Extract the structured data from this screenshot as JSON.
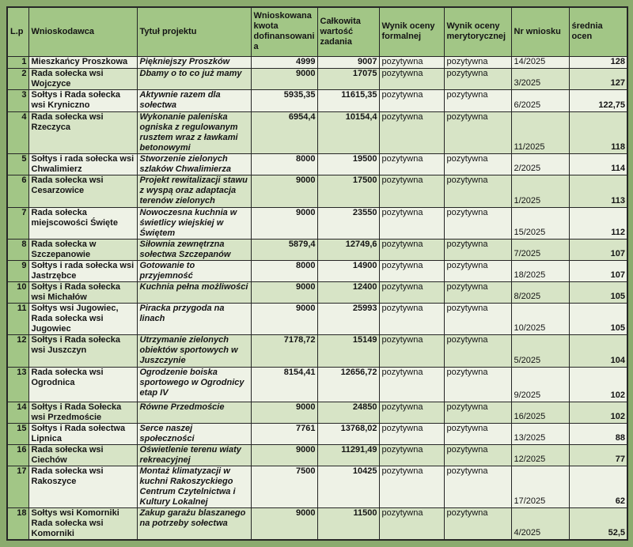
{
  "colors": {
    "page_bg": "#8bab6e",
    "header_bg": "#a2c686",
    "row_light": "#eef2e6",
    "row_green": "#d7e4c6",
    "border": "#262626",
    "text": "#141414"
  },
  "table": {
    "columns": [
      "L.p",
      "Wnioskodawca",
      "Tytuł projektu",
      "Wnioskowana kwota dofinansowania",
      "Całkowita wartość zadania",
      "Wynik oceny formalnej",
      "Wynik oceny merytorycznej",
      "Nr wniosku",
      "średnia ocen"
    ],
    "rows": [
      {
        "lp": "1",
        "wnioskodawca": "Mieszkańcy Proszkowa",
        "tytul": "Piękniejszy Proszków",
        "kwota": "4999",
        "wartosc": "9007",
        "formalna": "pozytywna",
        "merytoryczna": "pozytywna",
        "nr": "14/2025",
        "srednia": "128"
      },
      {
        "lp": "2",
        "wnioskodawca": "Rada sołecka wsi Wojczyce",
        "tytul": "Dbamy o to co już mamy",
        "kwota": "9000",
        "wartosc": "17075",
        "formalna": "pozytywna",
        "merytoryczna": "pozytywna",
        "nr": "3/2025",
        "srednia": "127"
      },
      {
        "lp": "3",
        "wnioskodawca": "Sołtys i Rada sołecka wsi Kryniczno",
        "tytul": "Aktywnie razem dla sołectwa",
        "kwota": "5935,35",
        "wartosc": "11615,35",
        "formalna": "pozytywna",
        "merytoryczna": "pozytywna",
        "nr": "6/2025",
        "srednia": "122,75"
      },
      {
        "lp": "4",
        "wnioskodawca": "Rada sołecka wsi Rzeczyca",
        "tytul": "Wykonanie paleniska ogniska z regulowanym rusztem wraz z ławkami betonowymi",
        "kwota": "6954,4",
        "wartosc": "10154,4",
        "formalna": "pozytywna",
        "merytoryczna": "pozytywna",
        "nr": "11/2025",
        "srednia": "118"
      },
      {
        "lp": "5",
        "wnioskodawca": "Sołtys i rada sołecka wsi Chwalimierz",
        "tytul": "Stworzenie zielonych szlaków Chwalimierza",
        "kwota": "8000",
        "wartosc": "19500",
        "formalna": "pozytywna",
        "merytoryczna": "pozytywna",
        "nr": "2/2025",
        "srednia": "114"
      },
      {
        "lp": "6",
        "wnioskodawca": "Rada sołecka wsi Cesarzowice",
        "tytul": "Projekt rewitalizacji stawu z wyspą oraz adaptacja terenów zielonych",
        "kwota": "9000",
        "wartosc": "17500",
        "formalna": "pozytywna",
        "merytoryczna": "pozytywna",
        "nr": "1/2025",
        "srednia": "113"
      },
      {
        "lp": "7",
        "wnioskodawca": "Rada sołecka miejscowości Święte",
        "tytul": "Nowoczesna kuchnia w świetlicy wiejskiej w Świętem",
        "kwota": "9000",
        "wartosc": "23550",
        "formalna": "pozytywna",
        "merytoryczna": "pozytywna",
        "nr": "15/2025",
        "srednia": "112"
      },
      {
        "lp": "8",
        "wnioskodawca": "Rada sołecka w Szczepanowie",
        "tytul": "Siłownia zewnętrzna sołectwa Szczepanów",
        "kwota": "5879,4",
        "wartosc": "12749,6",
        "formalna": "pozytywna",
        "merytoryczna": "pozytywna",
        "nr": "7/2025",
        "srednia": "107"
      },
      {
        "lp": "9",
        "wnioskodawca": "Sołtys i rada sołecka wsi Jastrzębce",
        "tytul": "Gotowanie to przyjemność",
        "kwota": "8000",
        "wartosc": "14900",
        "formalna": "pozytywna",
        "merytoryczna": "pozytywna",
        "nr": "18/2025",
        "srednia": "107"
      },
      {
        "lp": "10",
        "wnioskodawca": "Sołtys i Rada sołecka wsi Michałów",
        "tytul": "Kuchnia pełna możliwości",
        "kwota": "9000",
        "wartosc": "12400",
        "formalna": "pozytywna",
        "merytoryczna": "pozytywna",
        "nr": "8/2025",
        "srednia": "105"
      },
      {
        "lp": "11",
        "wnioskodawca": "Sołtys wsi Jugowiec, Rada sołecka wsi Jugowiec",
        "tytul": "Piracka przygoda na linach",
        "kwota": "9000",
        "wartosc": "25993",
        "formalna": "pozytywna",
        "merytoryczna": "pozytywna",
        "nr": "10/2025",
        "srednia": "105"
      },
      {
        "lp": "12",
        "wnioskodawca": "Sołtys i Rada sołecka wsi Juszczyn",
        "tytul": "Utrzymanie zielonych obiektów sportowych w Juszczynie",
        "kwota": "7178,72",
        "wartosc": "15149",
        "formalna": "pozytywna",
        "merytoryczna": "pozytywna",
        "nr": "5/2025",
        "srednia": "104"
      },
      {
        "lp": "13",
        "wnioskodawca": "Rada sołecka wsi Ogrodnica",
        "tytul": "Ogrodzenie boiska sportowego w Ogrodnicy etap IV",
        "kwota": "8154,41",
        "wartosc": "12656,72",
        "formalna": "pozytywna",
        "merytoryczna": "pozytywna",
        "nr": "9/2025",
        "srednia": "102"
      },
      {
        "lp": "14",
        "wnioskodawca": "Sołtys i Rada Sołecka wsi Przedmoście",
        "tytul": "Równe Przedmoście",
        "kwota": "9000",
        "wartosc": "24850",
        "formalna": "pozytywna",
        "merytoryczna": "pozytywna",
        "nr": "16/2025",
        "srednia": "102"
      },
      {
        "lp": "15",
        "wnioskodawca": "Sołtys i Rada sołectwa Lipnica",
        "tytul": "Serce naszej społeczności",
        "kwota": "7761",
        "wartosc": "13768,02",
        "formalna": "pozytywna",
        "merytoryczna": "pozytywna",
        "nr": "13/2025",
        "srednia": "88"
      },
      {
        "lp": "16",
        "wnioskodawca": "Rada sołecka wsi Ciechów",
        "tytul": "Oświetlenie terenu wiaty rekreacyjnej",
        "kwota": "9000",
        "wartosc": "11291,49",
        "formalna": "pozytywna",
        "merytoryczna": "pozytywna",
        "nr": "12/2025",
        "srednia": "77"
      },
      {
        "lp": "17",
        "wnioskodawca": "Rada sołecka wsi Rakoszyce",
        "tytul": "Montaż klimatyzacji w kuchni Rakoszyckiego Centrum Czytelnictwa i Kultury Lokalnej",
        "kwota": "7500",
        "wartosc": "10425",
        "formalna": "pozytywna",
        "merytoryczna": "pozytywna",
        "nr": "17/2025",
        "srednia": "62"
      },
      {
        "lp": "18",
        "wnioskodawca": "Sołtys wsi Komorniki Rada sołecka wsi Komorniki",
        "tytul": "Zakup garażu blaszanego na potrzeby sołectwa",
        "kwota": "9000",
        "wartosc": "11500",
        "formalna": "pozytywna",
        "merytoryczna": "pozytywna",
        "nr": "4/2025",
        "srednia": "52,5"
      }
    ]
  }
}
